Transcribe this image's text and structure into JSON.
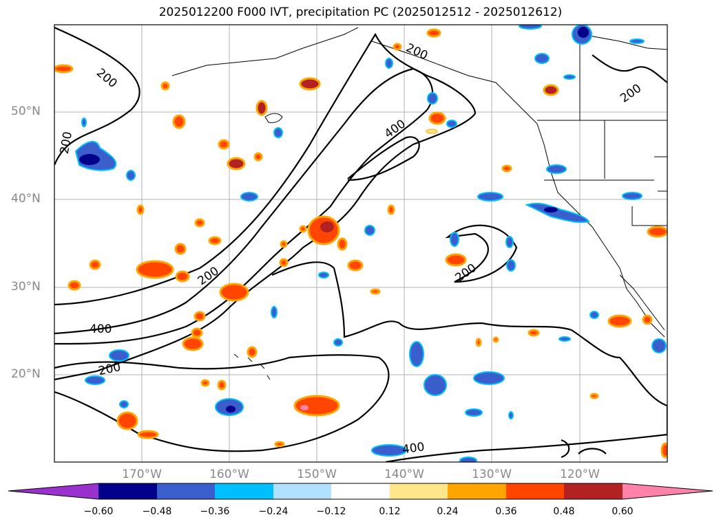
{
  "title": "2025012200 F000 IVT, precipitation PC (2025012512 - 2025012612)",
  "map": {
    "lat_labels": [
      "50°N",
      "40°N",
      "30°N",
      "20°N"
    ],
    "lon_labels": [
      "170°W",
      "160°W",
      "150°W",
      "140°W",
      "130°W",
      "120°W"
    ],
    "contour_labels": [
      "200",
      "200",
      "200",
      "400",
      "200",
      "200",
      "200",
      "400",
      "200",
      "400"
    ]
  },
  "colorbar": {
    "ticks": [
      "−0.60",
      "−0.48",
      "−0.36",
      "−0.24",
      "−0.12",
      "0.12",
      "0.24",
      "0.36",
      "0.48",
      "0.60"
    ],
    "colors": [
      "#9932cc",
      "#00008b",
      "#3a5fcd",
      "#00bfff",
      "#b0e2ff",
      "#ffffff",
      "#ffe68a",
      "#ffa500",
      "#ff4500",
      "#b22222",
      "#ff82ab"
    ]
  }
}
